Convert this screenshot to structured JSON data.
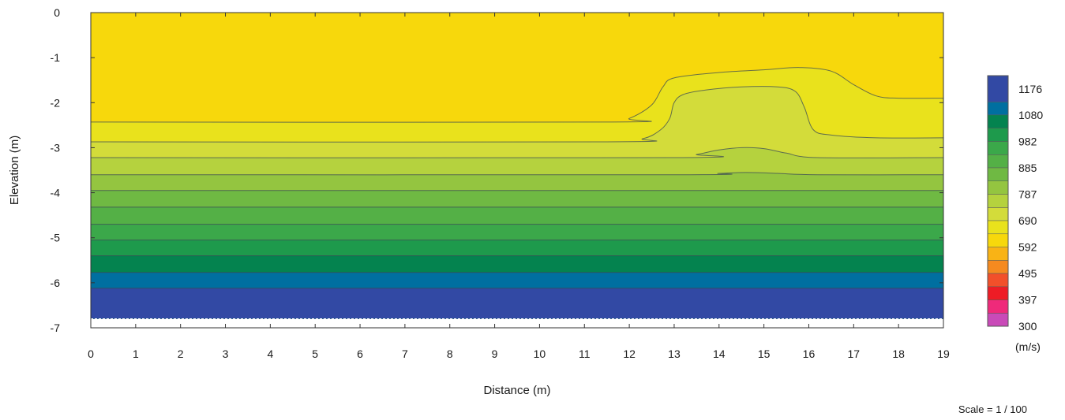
{
  "chart_data": {
    "type": "heatmap",
    "subtype": "filled-contour",
    "title": "",
    "xlabel": "Distance (m)",
    "ylabel": "Elevation (m)",
    "xlim": [
      0,
      19
    ],
    "ylim": [
      -7,
      0
    ],
    "x_ticks": [
      "0",
      "1",
      "2",
      "3",
      "4",
      "5",
      "6",
      "7",
      "8",
      "9",
      "10",
      "11",
      "12",
      "13",
      "14",
      "15",
      "16",
      "17",
      "18",
      "19"
    ],
    "y_ticks": [
      "0",
      "-1",
      "-2",
      "-3",
      "-4",
      "-5",
      "-6",
      "-7"
    ],
    "model_bottom": -6.8,
    "grid": false,
    "colorbar": {
      "unit": "(m/s)",
      "labels": [
        "1176",
        "1080",
        "982",
        "885",
        "787",
        "690",
        "592",
        "495",
        "397",
        "300"
      ],
      "min": 300,
      "max": 1225,
      "bands": [
        {
          "from": 300,
          "to": 348,
          "color": "#c94ab8"
        },
        {
          "from": 348,
          "to": 397,
          "color": "#ef2a7a"
        },
        {
          "from": 397,
          "to": 446,
          "color": "#ee1c25"
        },
        {
          "from": 446,
          "to": 495,
          "color": "#f2502a"
        },
        {
          "from": 495,
          "to": 543,
          "color": "#f58a1f"
        },
        {
          "from": 543,
          "to": 592,
          "color": "#f9b315"
        },
        {
          "from": 592,
          "to": 641,
          "color": "#f7d80c"
        },
        {
          "from": 641,
          "to": 690,
          "color": "#e9e21c"
        },
        {
          "from": 690,
          "to": 738,
          "color": "#d3dc3a"
        },
        {
          "from": 738,
          "to": 787,
          "color": "#b5d23e"
        },
        {
          "from": 787,
          "to": 836,
          "color": "#94c540"
        },
        {
          "from": 836,
          "to": 885,
          "color": "#6fb943"
        },
        {
          "from": 885,
          "to": 933,
          "color": "#54b046"
        },
        {
          "from": 933,
          "to": 982,
          "color": "#3ba84a"
        },
        {
          "from": 982,
          "to": 1031,
          "color": "#1e9a4c"
        },
        {
          "from": 1031,
          "to": 1080,
          "color": "#04834f"
        },
        {
          "from": 1080,
          "to": 1128,
          "color": "#006fa0"
        },
        {
          "from": 1128,
          "to": 1225,
          "color": "#3249a4"
        }
      ]
    },
    "layers": [
      {
        "velocity": 641,
        "boundary": [
          [
            0,
            -2.43
          ],
          [
            11.5,
            -2.43
          ],
          [
            12.0,
            -2.35
          ],
          [
            12.5,
            -2.05
          ],
          [
            12.75,
            -1.65
          ],
          [
            13.0,
            -1.45
          ],
          [
            14.0,
            -1.33
          ],
          [
            15.0,
            -1.27
          ],
          [
            15.8,
            -1.22
          ],
          [
            16.5,
            -1.3
          ],
          [
            17.0,
            -1.6
          ],
          [
            17.5,
            -1.85
          ],
          [
            18.0,
            -1.9
          ],
          [
            19,
            -1.9
          ]
        ]
      },
      {
        "velocity": 690,
        "boundary": [
          [
            0,
            -2.87
          ],
          [
            11.5,
            -2.87
          ],
          [
            12.3,
            -2.8
          ],
          [
            12.7,
            -2.6
          ],
          [
            12.9,
            -2.35
          ],
          [
            13.0,
            -2.0
          ],
          [
            13.2,
            -1.82
          ],
          [
            13.7,
            -1.72
          ],
          [
            14.5,
            -1.65
          ],
          [
            15.3,
            -1.65
          ],
          [
            15.7,
            -1.75
          ],
          [
            15.9,
            -2.1
          ],
          [
            16.1,
            -2.6
          ],
          [
            16.5,
            -2.72
          ],
          [
            17.5,
            -2.78
          ],
          [
            19,
            -2.78
          ]
        ]
      },
      {
        "velocity": 738,
        "boundary": [
          [
            0,
            -3.22
          ],
          [
            13.0,
            -3.22
          ],
          [
            13.5,
            -3.15
          ],
          [
            14.0,
            -3.05
          ],
          [
            14.5,
            -3.0
          ],
          [
            15.0,
            -3.02
          ],
          [
            15.5,
            -3.12
          ],
          [
            16.2,
            -3.22
          ],
          [
            19,
            -3.22
          ]
        ]
      },
      {
        "velocity": 787,
        "boundary": [
          [
            0,
            -3.6
          ],
          [
            13.0,
            -3.6
          ],
          [
            14.0,
            -3.57
          ],
          [
            14.6,
            -3.55
          ],
          [
            15.3,
            -3.57
          ],
          [
            16.2,
            -3.6
          ],
          [
            19,
            -3.6
          ]
        ]
      },
      {
        "velocity": 836,
        "boundary": [
          [
            0,
            -3.95
          ],
          [
            19,
            -3.95
          ]
        ]
      },
      {
        "velocity": 885,
        "boundary": [
          [
            0,
            -4.32
          ],
          [
            19,
            -4.32
          ]
        ]
      },
      {
        "velocity": 933,
        "boundary": [
          [
            0,
            -4.7
          ],
          [
            19,
            -4.7
          ]
        ]
      },
      {
        "velocity": 982,
        "boundary": [
          [
            0,
            -5.05
          ],
          [
            19,
            -5.05
          ]
        ]
      },
      {
        "velocity": 1031,
        "boundary": [
          [
            0,
            -5.4
          ],
          [
            19,
            -5.4
          ]
        ]
      },
      {
        "velocity": 1080,
        "boundary": [
          [
            0,
            -5.77
          ],
          [
            19,
            -5.77
          ]
        ]
      },
      {
        "velocity": 1150,
        "boundary": [
          [
            0,
            -6.12
          ],
          [
            19,
            -6.12
          ]
        ]
      }
    ],
    "top_velocity": 600,
    "scale_note": "Scale = 1 / 100"
  }
}
